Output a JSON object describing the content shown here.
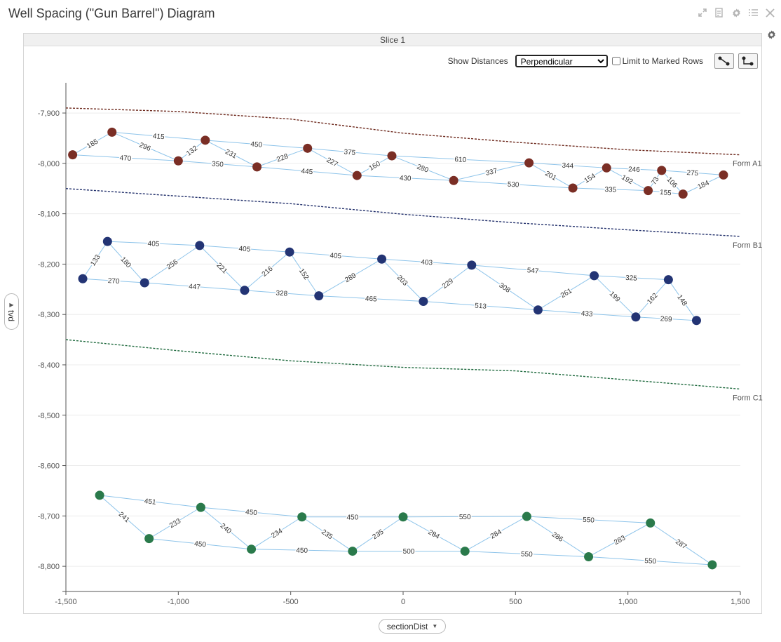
{
  "title": "Well Spacing (\"Gun Barrel\") Diagram",
  "toolbar": {
    "icons": [
      "expand-icon",
      "export-icon",
      "gear-icon",
      "list-icon",
      "close-icon"
    ]
  },
  "slice": {
    "label": "Slice 1"
  },
  "controls": {
    "show_distances_label": "Show Distances",
    "select_value": "Perpendicular",
    "limit_label": "Limit to Marked Rows"
  },
  "x_axis_selector": "sectionDist",
  "y_axis_selector": "tvd",
  "chart_data": {
    "type": "scatter",
    "xlim": [
      -1500,
      1500
    ],
    "ylim": [
      -8850,
      -7840
    ],
    "x_ticks": [
      -1500,
      -1000,
      -500,
      0,
      500,
      1000,
      1500
    ],
    "x_tick_labels": [
      "-1,500",
      "-1,000",
      "-500",
      "0",
      "500",
      "1,000",
      "1,500"
    ],
    "y_ticks": [
      -7900,
      -8000,
      -8100,
      -8200,
      -8300,
      -8400,
      -8500,
      -8600,
      -8700,
      -8800
    ],
    "y_tick_labels": [
      "-7,900",
      "-8,000",
      "-8,100",
      "-8,200",
      "-8,300",
      "-8,400",
      "-8,500",
      "-8,600",
      "-8,700",
      "-8,800"
    ],
    "grid": true,
    "formations": [
      {
        "name": "Form A1",
        "color": "#6e2a1e",
        "points": [
          [
            -1500,
            -7890
          ],
          [
            -1000,
            -7897
          ],
          [
            -500,
            -7912
          ],
          [
            0,
            -7940
          ],
          [
            500,
            -7958
          ],
          [
            1000,
            -7973
          ],
          [
            1500,
            -7983
          ]
        ]
      },
      {
        "name": "Form B1",
        "color": "#22306b",
        "points": [
          [
            -1500,
            -8050
          ],
          [
            -1000,
            -8065
          ],
          [
            -500,
            -8080
          ],
          [
            0,
            -8101
          ],
          [
            500,
            -8118
          ],
          [
            1000,
            -8132
          ],
          [
            1500,
            -8145
          ]
        ]
      },
      {
        "name": "Form C1",
        "color": "#1f6a3e",
        "points": [
          [
            -1500,
            -8350
          ],
          [
            -1000,
            -8372
          ],
          [
            -500,
            -8392
          ],
          [
            0,
            -8405
          ],
          [
            500,
            -8412
          ],
          [
            1000,
            -8430
          ],
          [
            1500,
            -8448
          ]
        ]
      }
    ],
    "series": [
      {
        "color": "#7a2e25",
        "points": [
          [
            -1470,
            -7983
          ],
          [
            -1295,
            -7938
          ],
          [
            -1000,
            -7995
          ],
          [
            -880,
            -7954
          ],
          [
            -650,
            -8007
          ],
          [
            -425,
            -7970
          ],
          [
            -205,
            -8024
          ],
          [
            -50,
            -7985
          ],
          [
            225,
            -8034
          ],
          [
            560,
            -7999
          ],
          [
            755,
            -8049
          ],
          [
            905,
            -8009
          ],
          [
            1090,
            -8054
          ],
          [
            1150,
            -8014
          ],
          [
            1245,
            -8061
          ],
          [
            1425,
            -8023
          ]
        ],
        "links": [
          {
            "from": 0,
            "to": 1,
            "label": "185"
          },
          {
            "from": 1,
            "to": 2,
            "label": "296"
          },
          {
            "from": 2,
            "to": 3,
            "label": "132"
          },
          {
            "from": 3,
            "to": 4,
            "label": "231"
          },
          {
            "from": 4,
            "to": 5,
            "label": "228"
          },
          {
            "from": 5,
            "to": 6,
            "label": "227"
          },
          {
            "from": 6,
            "to": 7,
            "label": "160"
          },
          {
            "from": 7,
            "to": 8,
            "label": "280"
          },
          {
            "from": 8,
            "to": 9,
            "label": "337"
          },
          {
            "from": 9,
            "to": 10,
            "label": "201"
          },
          {
            "from": 10,
            "to": 11,
            "label": "154"
          },
          {
            "from": 11,
            "to": 12,
            "label": "192"
          },
          {
            "from": 12,
            "to": 13,
            "label": "73"
          },
          {
            "from": 13,
            "to": 14,
            "label": "106"
          },
          {
            "from": 14,
            "to": 15,
            "label": "184"
          },
          {
            "from": 1,
            "to": 3,
            "label": "415"
          },
          {
            "from": 3,
            "to": 5,
            "label": "450"
          },
          {
            "from": 5,
            "to": 7,
            "label": "375"
          },
          {
            "from": 7,
            "to": 9,
            "label": "610"
          },
          {
            "from": 9,
            "to": 11,
            "label": "344"
          },
          {
            "from": 11,
            "to": 13,
            "label": "246"
          },
          {
            "from": 13,
            "to": 15,
            "label": "275"
          },
          {
            "from": 0,
            "to": 2,
            "label": "470"
          },
          {
            "from": 2,
            "to": 4,
            "label": "350"
          },
          {
            "from": 4,
            "to": 6,
            "label": "445"
          },
          {
            "from": 6,
            "to": 8,
            "label": "430"
          },
          {
            "from": 8,
            "to": 10,
            "label": "530"
          },
          {
            "from": 10,
            "to": 12,
            "label": "335"
          },
          {
            "from": 12,
            "to": 14,
            "label": "155"
          }
        ]
      },
      {
        "color": "#233474",
        "points": [
          [
            -1425,
            -8229
          ],
          [
            -1315,
            -8155
          ],
          [
            -1150,
            -8237
          ],
          [
            -905,
            -8163
          ],
          [
            -705,
            -8252
          ],
          [
            -505,
            -8176
          ],
          [
            -375,
            -8263
          ],
          [
            -95,
            -8190
          ],
          [
            90,
            -8274
          ],
          [
            305,
            -8202
          ],
          [
            600,
            -8291
          ],
          [
            850,
            -8223
          ],
          [
            1035,
            -8305
          ],
          [
            1180,
            -8231
          ],
          [
            1305,
            -8312
          ]
        ],
        "links": [
          {
            "from": 0,
            "to": 1,
            "label": "133"
          },
          {
            "from": 1,
            "to": 2,
            "label": "180"
          },
          {
            "from": 2,
            "to": 3,
            "label": "256"
          },
          {
            "from": 3,
            "to": 4,
            "label": "221"
          },
          {
            "from": 4,
            "to": 5,
            "label": "216"
          },
          {
            "from": 5,
            "to": 6,
            "label": "152"
          },
          {
            "from": 6,
            "to": 7,
            "label": "289"
          },
          {
            "from": 7,
            "to": 8,
            "label": "203"
          },
          {
            "from": 8,
            "to": 9,
            "label": "229"
          },
          {
            "from": 9,
            "to": 10,
            "label": "308"
          },
          {
            "from": 10,
            "to": 11,
            "label": "261"
          },
          {
            "from": 11,
            "to": 12,
            "label": "199"
          },
          {
            "from": 12,
            "to": 13,
            "label": "162"
          },
          {
            "from": 13,
            "to": 14,
            "label": "148"
          },
          {
            "from": 1,
            "to": 3,
            "label": "405"
          },
          {
            "from": 3,
            "to": 5,
            "label": "405"
          },
          {
            "from": 5,
            "to": 7,
            "label": "405"
          },
          {
            "from": 7,
            "to": 9,
            "label": "403"
          },
          {
            "from": 9,
            "to": 11,
            "label": "547"
          },
          {
            "from": 11,
            "to": 13,
            "label": "325"
          },
          {
            "from": 0,
            "to": 2,
            "label": "270"
          },
          {
            "from": 2,
            "to": 4,
            "label": "447"
          },
          {
            "from": 4,
            "to": 6,
            "label": "328"
          },
          {
            "from": 6,
            "to": 8,
            "label": "465"
          },
          {
            "from": 8,
            "to": 10,
            "label": "513"
          },
          {
            "from": 10,
            "to": 12,
            "label": "433"
          },
          {
            "from": 12,
            "to": 14,
            "label": "269"
          }
        ]
      },
      {
        "color": "#2a7a4b",
        "points": [
          [
            -1350,
            -8659
          ],
          [
            -1130,
            -8745
          ],
          [
            -900,
            -8683
          ],
          [
            -675,
            -8766
          ],
          [
            -450,
            -8702
          ],
          [
            -225,
            -8770
          ],
          [
            0,
            -8702
          ],
          [
            275,
            -8770
          ],
          [
            550,
            -8701
          ],
          [
            825,
            -8781
          ],
          [
            1100,
            -8714
          ],
          [
            1375,
            -8797
          ]
        ],
        "links": [
          {
            "from": 0,
            "to": 1,
            "label": "241"
          },
          {
            "from": 1,
            "to": 2,
            "label": "233"
          },
          {
            "from": 2,
            "to": 3,
            "label": "240"
          },
          {
            "from": 3,
            "to": 4,
            "label": "234"
          },
          {
            "from": 4,
            "to": 5,
            "label": "235"
          },
          {
            "from": 5,
            "to": 6,
            "label": "235"
          },
          {
            "from": 6,
            "to": 7,
            "label": "284"
          },
          {
            "from": 7,
            "to": 8,
            "label": "284"
          },
          {
            "from": 8,
            "to": 9,
            "label": "286"
          },
          {
            "from": 9,
            "to": 10,
            "label": "283"
          },
          {
            "from": 10,
            "to": 11,
            "label": "287"
          },
          {
            "from": 0,
            "to": 2,
            "label": "451"
          },
          {
            "from": 2,
            "to": 4,
            "label": "450"
          },
          {
            "from": 4,
            "to": 6,
            "label": "450"
          },
          {
            "from": 6,
            "to": 8,
            "label": "550"
          },
          {
            "from": 8,
            "to": 10,
            "label": "550"
          },
          {
            "from": 1,
            "to": 3,
            "label": "450"
          },
          {
            "from": 3,
            "to": 5,
            "label": "450"
          },
          {
            "from": 5,
            "to": 7,
            "label": "500"
          },
          {
            "from": 7,
            "to": 9,
            "label": "550"
          },
          {
            "from": 9,
            "to": 11,
            "label": "550"
          }
        ]
      }
    ]
  }
}
